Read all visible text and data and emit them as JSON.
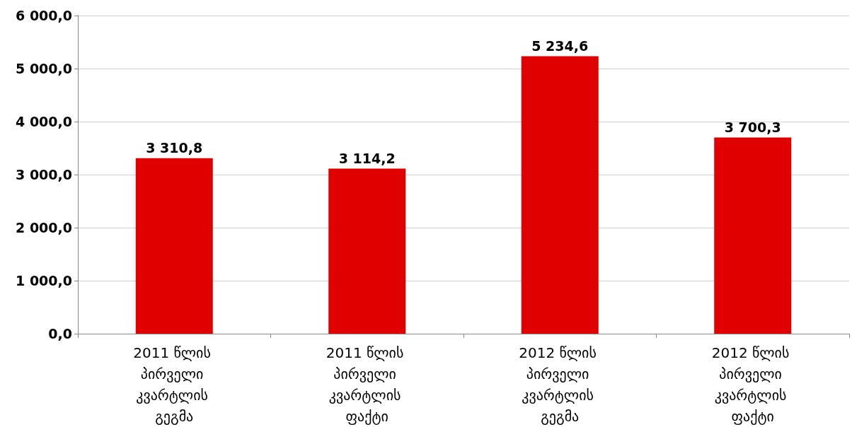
{
  "chart_data": {
    "type": "bar",
    "categories": [
      "2011 წლის პირველი კვარტლის გეგმა",
      "2011 წლის პირველი კვარტლის ფაქტი",
      "2012 წლის პირველი კვარტლის გეგმა",
      "2012 წლის პირველი კვარტლის ფაქტი"
    ],
    "values": [
      3310.8,
      3114.2,
      5234.6,
      3700.3
    ],
    "value_labels": [
      "3 310,8",
      "3 114,2",
      "5 234,6",
      "3 700,3"
    ],
    "color": "#e00000",
    "ylim": [
      0,
      6000
    ],
    "yticks": [
      {
        "value": 0,
        "label": "0,0"
      },
      {
        "value": 1000,
        "label": "1 000,0"
      },
      {
        "value": 2000,
        "label": "2 000,0"
      },
      {
        "value": 3000,
        "label": "3 000,0"
      },
      {
        "value": 4000,
        "label": "4 000,0"
      },
      {
        "value": 5000,
        "label": "5 000,0"
      },
      {
        "value": 6000,
        "label": "6 000,0"
      }
    ],
    "grid": "y"
  }
}
